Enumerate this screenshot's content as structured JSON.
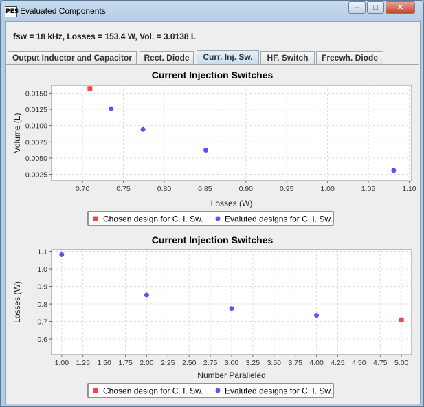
{
  "window": {
    "title": "Evaluated Components",
    "icon_text": "PES",
    "controls": {
      "minimize": "–",
      "maximize": "□",
      "close": "✕"
    }
  },
  "summary": "fsw = 18 kHz, Losses = 153.4 W, Vol. = 3.0138 L",
  "tabs": [
    {
      "label": "Output Inductor and Capacitor",
      "active": false
    },
    {
      "label": "Rect. Diode",
      "active": false
    },
    {
      "label": "Curr. Inj. Sw.",
      "active": true
    },
    {
      "label": "HF. Switch",
      "active": false
    },
    {
      "label": "Freewh. Diode",
      "active": false
    }
  ],
  "colors": {
    "chosen": "#f04848",
    "evaluated": "#5a55f2"
  },
  "chart_data": [
    {
      "type": "scatter",
      "title": "Current Injection Switches",
      "xlabel": "Losses (W)",
      "ylabel": "Volume (L)",
      "xlim": [
        0.662,
        1.103
      ],
      "ylim": [
        0.0015,
        0.0162
      ],
      "xticks": [
        "0.70",
        "0.75",
        "0.80",
        "0.85",
        "0.90",
        "0.95",
        "1.00",
        "1.05",
        "1.10"
      ],
      "xtick_values": [
        0.7,
        0.75,
        0.8,
        0.85,
        0.9,
        0.95,
        1.0,
        1.05,
        1.1
      ],
      "yticks": [
        "0.0025",
        "0.0050",
        "0.0075",
        "0.0100",
        "0.0125",
        "0.0150"
      ],
      "ytick_values": [
        0.0025,
        0.005,
        0.0075,
        0.01,
        0.0125,
        0.015
      ],
      "grid": true,
      "legend_position": "bottom",
      "series": [
        {
          "name": "Chosen design for C. I. Sw.",
          "marker": "square",
          "points": [
            [
              0.709,
              0.0157
            ]
          ]
        },
        {
          "name": "Evaluted designs for C. I. Sw.",
          "marker": "circle",
          "points": [
            [
              0.735,
              0.0126
            ],
            [
              0.774,
              0.0094
            ],
            [
              0.851,
              0.0062
            ],
            [
              1.081,
              0.0031
            ]
          ]
        }
      ]
    },
    {
      "type": "scatter",
      "title": "Current Injection Switches",
      "xlabel": "Number Paralleled",
      "ylabel": "Losses (W)",
      "xlim": [
        0.88,
        5.12
      ],
      "ylim": [
        0.51,
        1.11
      ],
      "xticks": [
        "1.00",
        "1.25",
        "1.50",
        "1.75",
        "2.00",
        "2.25",
        "2.50",
        "2.75",
        "3.00",
        "3.25",
        "3.50",
        "3.75",
        "4.00",
        "4.25",
        "4.50",
        "4.75",
        "5.00"
      ],
      "xtick_values": [
        1.0,
        1.25,
        1.5,
        1.75,
        2.0,
        2.25,
        2.5,
        2.75,
        3.0,
        3.25,
        3.5,
        3.75,
        4.0,
        4.25,
        4.5,
        4.75,
        5.0
      ],
      "yticks": [
        "0.6",
        "0.7",
        "0.8",
        "0.9",
        "1.0",
        "1.1"
      ],
      "ytick_values": [
        0.6,
        0.7,
        0.8,
        0.9,
        1.0,
        1.1
      ],
      "grid": true,
      "legend_position": "bottom",
      "series": [
        {
          "name": "Chosen design for C. I. Sw.",
          "marker": "square",
          "points": [
            [
              5.0,
              0.709
            ]
          ]
        },
        {
          "name": "Evaluted designs for C. I. Sw.",
          "marker": "circle",
          "points": [
            [
              1.0,
              1.081
            ],
            [
              2.0,
              0.851
            ],
            [
              3.0,
              0.774
            ],
            [
              4.0,
              0.735
            ]
          ]
        }
      ]
    }
  ]
}
